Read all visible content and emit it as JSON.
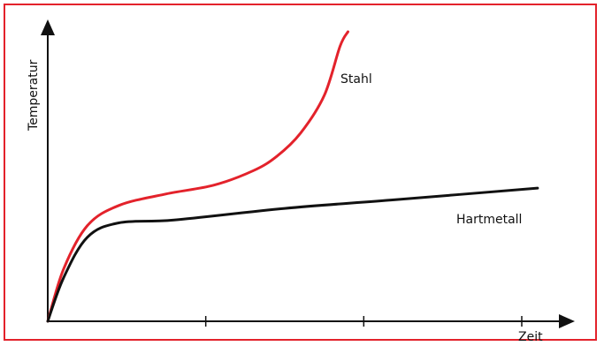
{
  "chart_data": {
    "type": "line",
    "xlabel": "Zeit",
    "ylabel": "Temperatur",
    "xlim": [
      0,
      3.3
    ],
    "ylim": [
      0,
      1
    ],
    "x_ticks": [
      1,
      2,
      3
    ],
    "grid": false,
    "legend": "none",
    "series": [
      {
        "name": "Stahl",
        "color": "#e3222b",
        "points": [
          [
            0,
            0
          ],
          [
            0.1,
            0.18
          ],
          [
            0.25,
            0.33
          ],
          [
            0.45,
            0.4
          ],
          [
            0.75,
            0.44
          ],
          [
            1.05,
            0.47
          ],
          [
            1.3,
            0.52
          ],
          [
            1.45,
            0.57
          ],
          [
            1.6,
            0.65
          ],
          [
            1.75,
            0.78
          ],
          [
            1.85,
            0.95
          ],
          [
            1.9,
            1.0
          ]
        ]
      },
      {
        "name": "Hartmetall",
        "color": "#111111",
        "points": [
          [
            0,
            0
          ],
          [
            0.1,
            0.15
          ],
          [
            0.25,
            0.29
          ],
          [
            0.45,
            0.34
          ],
          [
            0.8,
            0.35
          ],
          [
            1.5,
            0.39
          ],
          [
            2.2,
            0.42
          ],
          [
            3.1,
            0.46
          ]
        ]
      }
    ]
  }
}
